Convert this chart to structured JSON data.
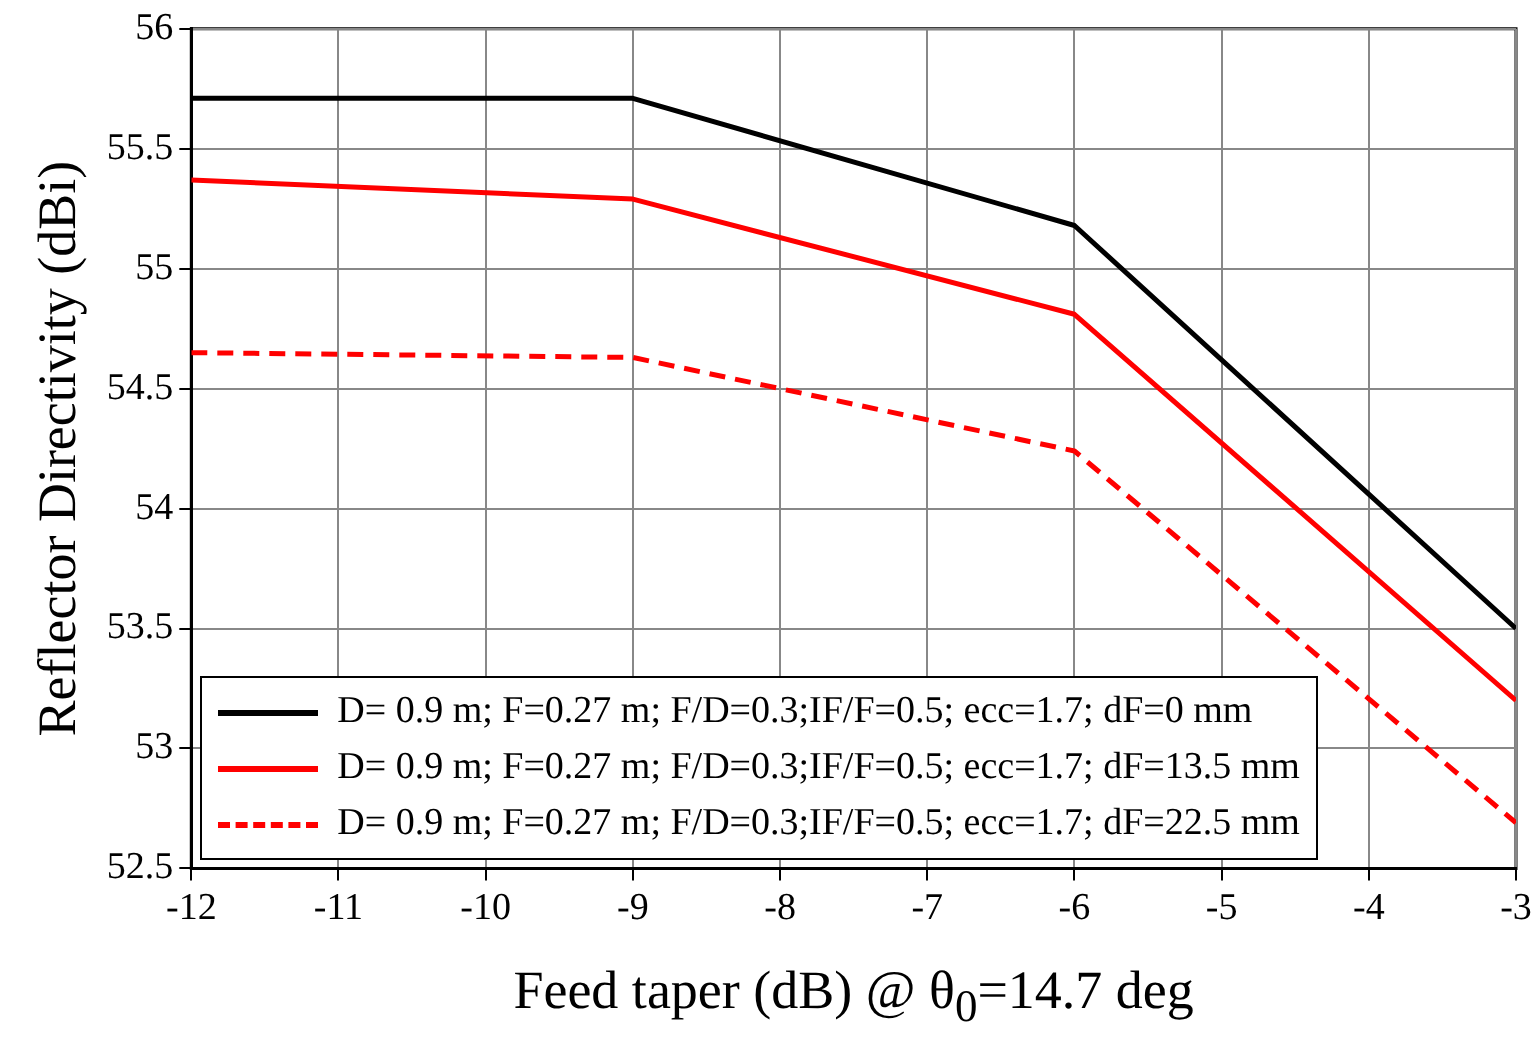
{
  "chart_data": {
    "type": "line",
    "xlabel": "Feed taper (dB) @ θ$_{0}$=14.7 deg",
    "ylabel": "Reflector Directivity (dBi)",
    "x": [
      -12,
      -9,
      -6,
      -3
    ],
    "series": [
      {
        "name": "D= 0.9 m; F=0.27 m; F/D=0.3;IF/F=0.5; ecc=1.7; dF=0 mm",
        "color": "#000000",
        "values": [
          55.71,
          55.71,
          55.18,
          53.5
        ]
      },
      {
        "name": "D= 0.9 m; F=0.27 m; F/D=0.3;IF/F=0.5; ecc=1.7; dF=13.5 mm",
        "color": "#ff0000",
        "values": [
          55.37,
          55.29,
          54.81,
          53.2
        ]
      },
      {
        "name": "D= 0.9 m; F=0.27 m; F/D=0.3;IF/F=0.5; ecc=1.7; dF=22.5 mm",
        "color": "#ff0000",
        "values": [
          54.65,
          54.63,
          54.24,
          52.69
        ],
        "line_style": "dashed"
      }
    ],
    "xlim": [
      -12,
      -3
    ],
    "xticks": [
      -12,
      -11,
      -10,
      -9,
      -8,
      -7,
      -6,
      -5,
      -4,
      -3
    ],
    "ylim": [
      52.5,
      56
    ],
    "yticks": [
      52.5,
      53,
      53.5,
      54,
      54.5,
      55,
      55.5,
      56
    ],
    "grid": true,
    "legend": "bottom left",
    "marker": "none",
    "line_style": "solid"
  }
}
